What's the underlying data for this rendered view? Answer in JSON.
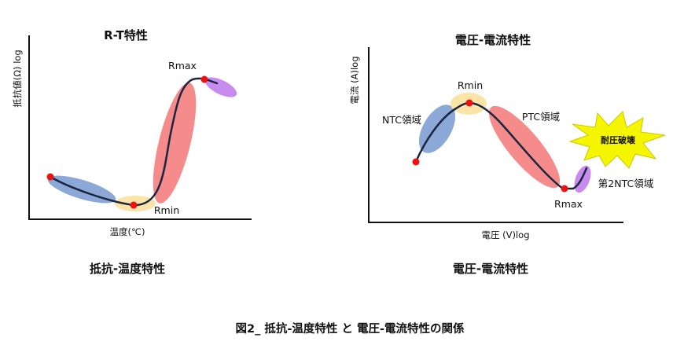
{
  "left_chart": {
    "title": "R-T特性",
    "ylabel": "抵抗値(Ω) log",
    "xlabel": "温度(℃)",
    "rmax_label": "Rmax",
    "rmin_label": "Rmin",
    "caption": "抵抗-温度特性"
  },
  "right_chart": {
    "title": "電圧-電流特性",
    "ylabel": "電流 (A)log",
    "xlabel": "電圧 (V)log",
    "rmin_label": "Rmin",
    "rmax_label": "Rmax",
    "ntc_label": "NTC領域",
    "ptc_label": "PTC領域",
    "ntc2_label": "第2NTC領域",
    "burst_label": "耐圧破壊",
    "caption": "電圧-電流特性"
  },
  "figure_caption": "図2_ 抵抗-温度特性 と 電圧-電流特性の関係",
  "colors": {
    "curve": "#1a2540",
    "point": "#ee1111",
    "blue_region": "#7f9fd3",
    "yellow_region": "#fbe4a8",
    "red_region": "#f47e7e",
    "purple_region": "#c78bf0",
    "burst": "#f5f500"
  }
}
